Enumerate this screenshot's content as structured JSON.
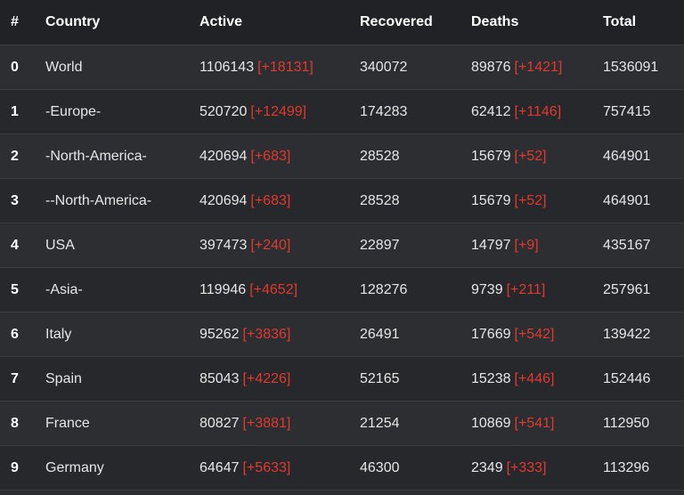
{
  "table": {
    "headers": {
      "idx": "#",
      "country": "Country",
      "active": "Active",
      "recovered": "Recovered",
      "deaths": "Deaths",
      "total": "Total"
    },
    "rows": [
      {
        "idx": "0",
        "country": "World",
        "active": "1106143",
        "active_delta": "[+18131]",
        "recovered": "340072",
        "deaths": "89876",
        "deaths_delta": "[+1421]",
        "total": "1536091"
      },
      {
        "idx": "1",
        "country": "-Europe-",
        "active": "520720",
        "active_delta": "[+12499]",
        "recovered": "174283",
        "deaths": "62412",
        "deaths_delta": "[+1146]",
        "total": "757415"
      },
      {
        "idx": "2",
        "country": "-North-America-",
        "active": "420694",
        "active_delta": "[+683]",
        "recovered": "28528",
        "deaths": "15679",
        "deaths_delta": "[+52]",
        "total": "464901"
      },
      {
        "idx": "3",
        "country": "--North-America-",
        "active": "420694",
        "active_delta": "[+683]",
        "recovered": "28528",
        "deaths": "15679",
        "deaths_delta": "[+52]",
        "total": "464901"
      },
      {
        "idx": "4",
        "country": "USA",
        "active": "397473",
        "active_delta": "[+240]",
        "recovered": "22897",
        "deaths": "14797",
        "deaths_delta": "[+9]",
        "total": "435167"
      },
      {
        "idx": "5",
        "country": "-Asia-",
        "active": "119946",
        "active_delta": "[+4652]",
        "recovered": "128276",
        "deaths": "9739",
        "deaths_delta": "[+211]",
        "total": "257961"
      },
      {
        "idx": "6",
        "country": "Italy",
        "active": "95262",
        "active_delta": "[+3836]",
        "recovered": "26491",
        "deaths": "17669",
        "deaths_delta": "[+542]",
        "total": "139422"
      },
      {
        "idx": "7",
        "country": "Spain",
        "active": "85043",
        "active_delta": "[+4226]",
        "recovered": "52165",
        "deaths": "15238",
        "deaths_delta": "[+446]",
        "total": "152446"
      },
      {
        "idx": "8",
        "country": "France",
        "active": "80827",
        "active_delta": "[+3881]",
        "recovered": "21254",
        "deaths": "10869",
        "deaths_delta": "[+541]",
        "total": "112950"
      },
      {
        "idx": "9",
        "country": "Germany",
        "active": "64647",
        "active_delta": "[+5633]",
        "recovered": "46300",
        "deaths": "2349",
        "deaths_delta": "[+333]",
        "total": "113296"
      }
    ]
  },
  "colors": {
    "header_bg": "#212226",
    "row_bg_a": "#2c2e32",
    "row_bg_b": "#26282c",
    "delta": "#e0392e",
    "text": "#e6e6e6"
  }
}
